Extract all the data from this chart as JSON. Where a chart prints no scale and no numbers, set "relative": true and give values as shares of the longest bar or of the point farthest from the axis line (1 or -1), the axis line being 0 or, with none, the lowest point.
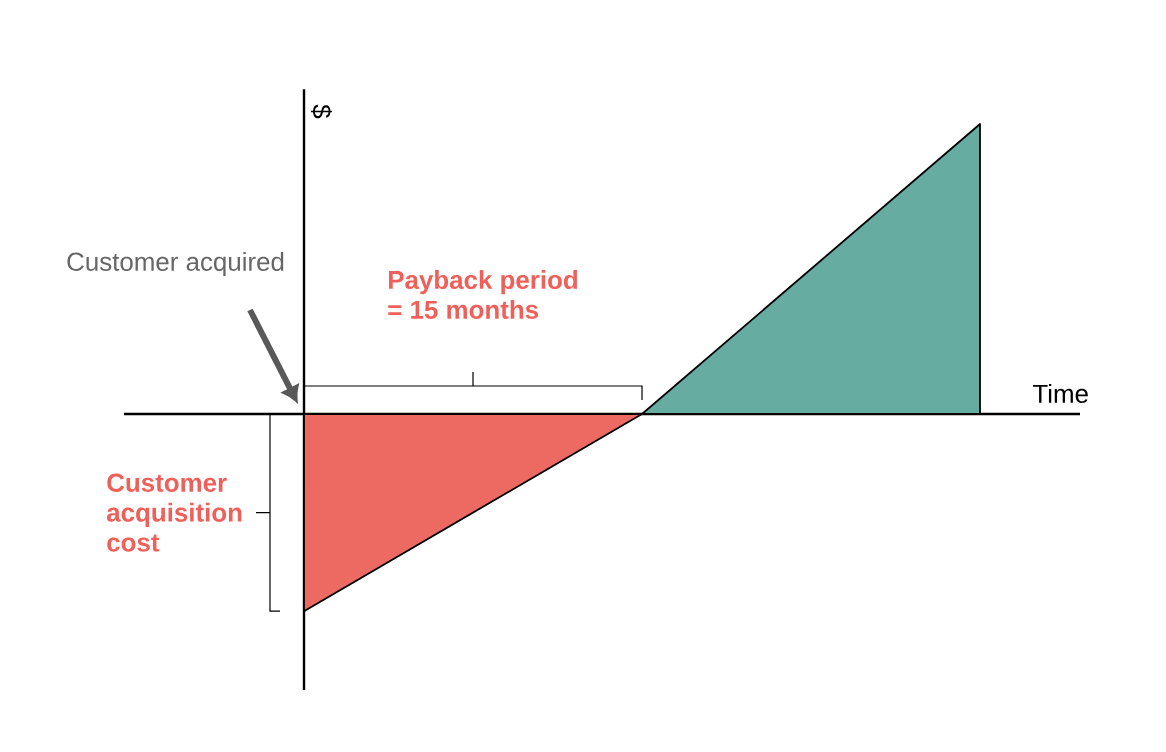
{
  "chart_data": {
    "type": "area",
    "relative": true,
    "xlabel": "Time",
    "ylabel": "$",
    "categories": [
      null,
      null,
      null
    ],
    "series": [
      {
        "color": "#ec6a62",
        "values": [
          -0.68,
          0,
          null
        ]
      },
      {
        "color": "#66aca0",
        "values": [
          null,
          0,
          1
        ]
      }
    ],
    "annotations": [
      "Customer acquired",
      "Payback period\n= 15 months",
      "Customer\nacquisition\ncost"
    ]
  }
}
